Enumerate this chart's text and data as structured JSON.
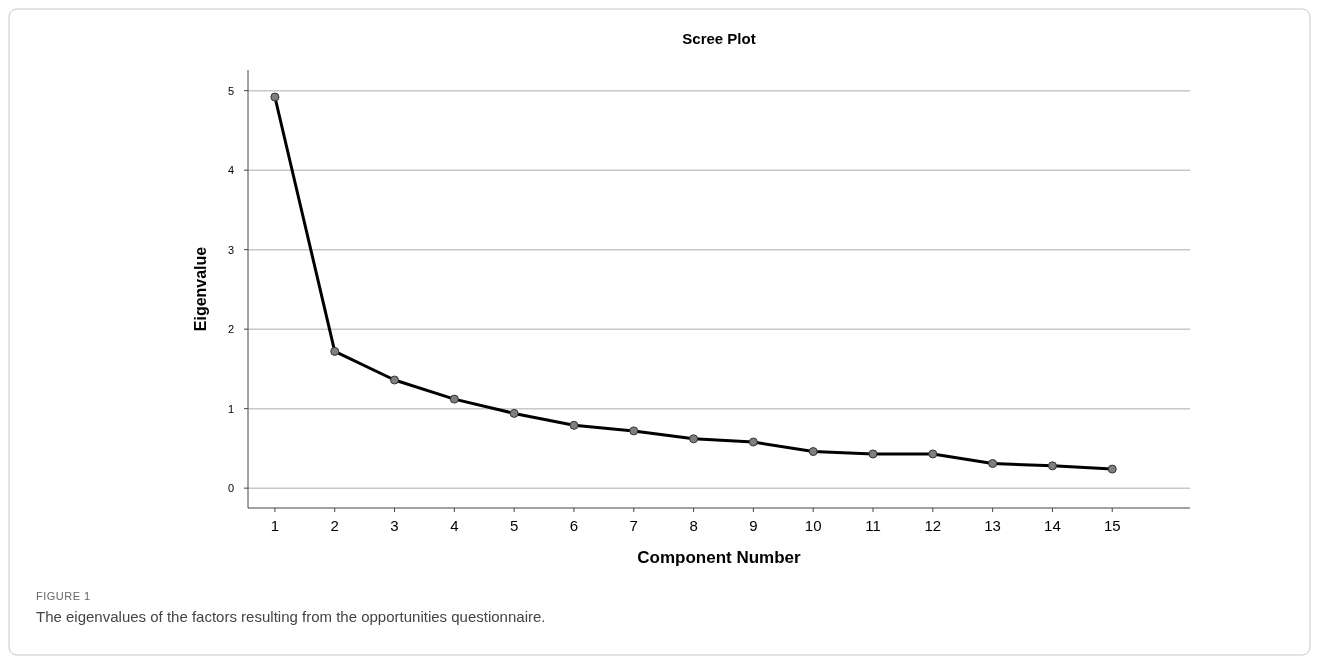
{
  "chart_data": {
    "type": "line",
    "title": "Scree Plot",
    "xlabel": "Component Number",
    "ylabel": "Eigenvalue",
    "x": [
      1,
      2,
      3,
      4,
      5,
      6,
      7,
      8,
      9,
      10,
      11,
      12,
      13,
      14,
      15
    ],
    "series": [
      {
        "color": "#000000",
        "values": [
          4.92,
          1.72,
          1.36,
          1.12,
          0.94,
          0.79,
          0.72,
          0.62,
          0.58,
          0.46,
          0.43,
          0.43,
          0.31,
          0.28,
          0.24
        ]
      }
    ],
    "xlim": [
      0.55,
      16.3
    ],
    "xticks": [
      1,
      2,
      3,
      4,
      5,
      6,
      7,
      8,
      9,
      10,
      11,
      12,
      13,
      14,
      15
    ],
    "ylim": [
      -0.25,
      5.26
    ],
    "yticks": [
      0,
      1,
      2,
      3,
      4,
      5
    ],
    "grid": "y",
    "marker": "circle",
    "line_style": "solid",
    "annotations": [
      "FIGURE 1",
      "The eigenvalues of the factors resulting from the opportunities questionnaire."
    ]
  }
}
